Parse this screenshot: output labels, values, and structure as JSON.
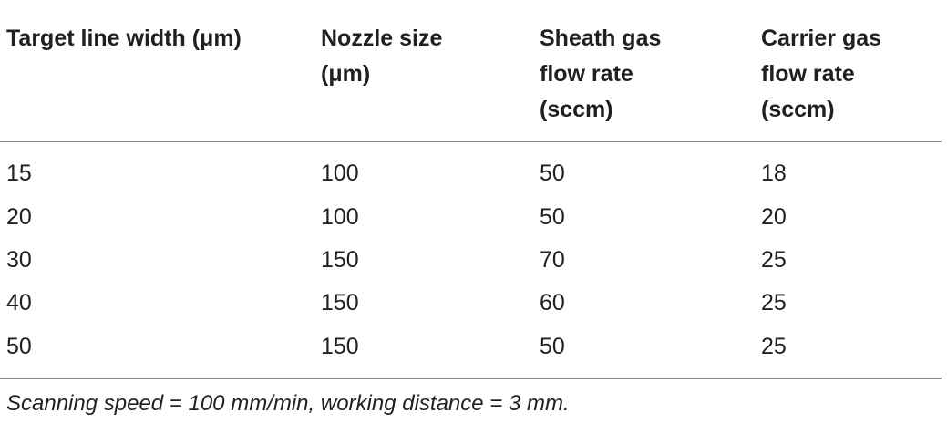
{
  "table": {
    "header": [
      [
        "Target line width (μm)"
      ],
      [
        "Nozzle size",
        "(μm)"
      ],
      [
        "Sheath gas",
        "flow rate",
        "(sccm)"
      ],
      [
        "Carrier gas",
        "flow rate",
        "(sccm)"
      ]
    ],
    "rows": [
      [
        15,
        100,
        50,
        18
      ],
      [
        20,
        100,
        50,
        20
      ],
      [
        30,
        150,
        70,
        25
      ],
      [
        40,
        150,
        60,
        25
      ],
      [
        50,
        150,
        50,
        25
      ]
    ],
    "footnote": "Scanning speed = 100 mm/min, working distance = 3 mm."
  }
}
